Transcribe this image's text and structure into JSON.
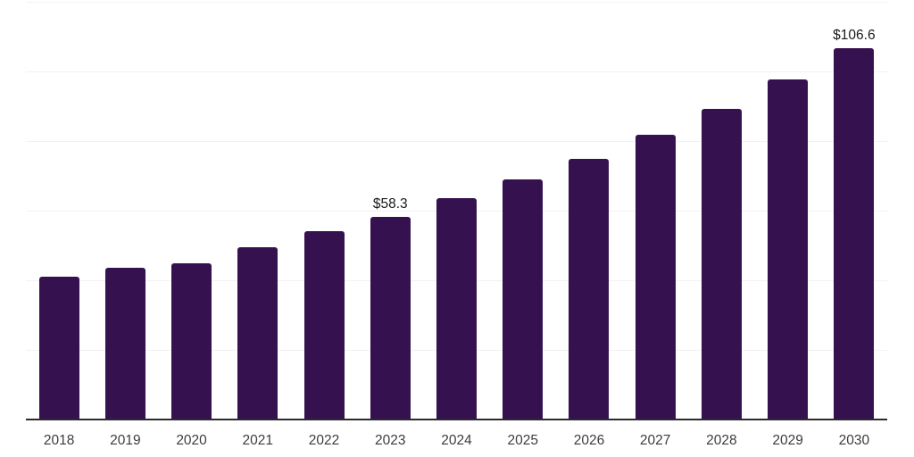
{
  "chart": {
    "colors": {
      "background": "#ffffff",
      "bar": "#361150",
      "grid": "#f2f2f2",
      "axis": "#2b2b2b",
      "tick_label": "#3d3d3d",
      "value_label": "#1a1a1a"
    }
  },
  "chart_data": {
    "type": "bar",
    "title": "",
    "xlabel": "",
    "ylabel": "",
    "categories": [
      "2018",
      "2019",
      "2020",
      "2021",
      "2022",
      "2023",
      "2024",
      "2025",
      "2026",
      "2027",
      "2028",
      "2029",
      "2030"
    ],
    "values": [
      40.9,
      43.6,
      44.8,
      49.6,
      54.0,
      58.3,
      63.5,
      69.0,
      75.0,
      81.7,
      89.2,
      97.8,
      106.6
    ],
    "value_labels": {
      "2023": "$58.3",
      "2030": "$106.6"
    },
    "ylim": [
      0,
      120
    ],
    "grid_step": 20,
    "grid": true,
    "legend": false,
    "y_axis_tick_labels_visible": false
  }
}
